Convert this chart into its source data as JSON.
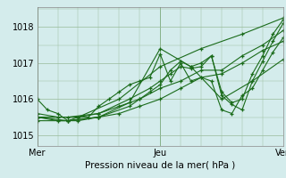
{
  "background_color": "#d4ecec",
  "grid_color": "#99bb99",
  "line_color": "#1a6b1a",
  "marker": "+",
  "title": "Pression niveau de la mer( hPa )",
  "ylim": [
    1014.7,
    1018.55
  ],
  "yticks": [
    1015,
    1016,
    1017,
    1018
  ],
  "xlim": [
    0,
    48
  ],
  "xtick_positions": [
    0,
    24,
    48
  ],
  "xtick_labels": [
    "Mer",
    "Jeu",
    "Ven"
  ],
  "vlines": [
    0,
    24,
    48
  ],
  "series": [
    [
      0.0,
      1016.0,
      2.0,
      1015.7,
      4.0,
      1015.6,
      6.0,
      1015.4,
      8.0,
      1015.5,
      10.0,
      1015.5,
      12.0,
      1015.8,
      14.0,
      1016.0,
      16.0,
      1016.2,
      18.0,
      1016.4,
      20.0,
      1016.5,
      22.0,
      1016.6,
      24.0,
      1017.25,
      26.0,
      1016.5,
      28.0,
      1017.0,
      30.0,
      1016.5,
      32.0,
      1016.6,
      34.0,
      1016.5,
      36.0,
      1015.7,
      38.0,
      1015.6,
      40.0,
      1016.1,
      42.0,
      1016.3,
      44.0,
      1016.8,
      46.0,
      1017.3,
      48.0,
      1017.7
    ],
    [
      0.0,
      1015.6,
      4.0,
      1015.5,
      8.0,
      1015.5,
      12.0,
      1015.6,
      16.0,
      1015.8,
      20.0,
      1016.0,
      24.0,
      1016.3,
      28.0,
      1016.5,
      32.0,
      1016.8,
      36.0,
      1016.8,
      40.0,
      1017.2,
      44.0,
      1017.5,
      48.0,
      1017.9
    ],
    [
      0.0,
      1015.5,
      4.0,
      1015.4,
      8.0,
      1015.4,
      12.0,
      1015.5,
      16.0,
      1015.6,
      20.0,
      1015.8,
      24.0,
      1016.0,
      28.0,
      1016.3,
      32.0,
      1016.6,
      36.0,
      1016.7,
      40.0,
      1017.0,
      44.0,
      1017.35,
      48.0,
      1017.6
    ],
    [
      0.0,
      1015.5,
      6.0,
      1015.4,
      12.0,
      1015.5,
      18.0,
      1015.8,
      20.0,
      1016.0,
      22.0,
      1016.2,
      24.0,
      1016.4,
      26.0,
      1016.8,
      28.0,
      1017.05,
      30.0,
      1016.9,
      32.0,
      1017.0,
      34.0,
      1017.2,
      36.0,
      1016.1,
      38.0,
      1015.85,
      40.0,
      1015.7,
      42.0,
      1016.5,
      44.0,
      1017.05,
      46.0,
      1017.6,
      48.0,
      1018.1
    ],
    [
      0.0,
      1015.5,
      6.0,
      1015.5,
      12.0,
      1015.6,
      18.0,
      1016.0,
      22.0,
      1016.3,
      24.0,
      1016.5,
      26.0,
      1016.7,
      28.0,
      1016.9,
      30.0,
      1016.85,
      32.0,
      1016.9,
      34.0,
      1017.2,
      36.0,
      1016.2,
      38.0,
      1015.9,
      40.0,
      1016.0,
      42.0,
      1016.7,
      44.0,
      1017.2,
      46.0,
      1017.8,
      48.0,
      1018.2
    ],
    [
      0.0,
      1015.5,
      8.0,
      1015.5,
      16.0,
      1016.0,
      24.0,
      1016.9,
      32.0,
      1017.4,
      40.0,
      1017.8,
      48.0,
      1018.25
    ],
    [
      0.0,
      1015.4,
      6.0,
      1015.4,
      12.0,
      1015.5,
      18.0,
      1015.9,
      24.0,
      1017.4,
      30.0,
      1016.9,
      36.0,
      1016.0,
      42.0,
      1016.5,
      48.0,
      1017.1
    ]
  ]
}
